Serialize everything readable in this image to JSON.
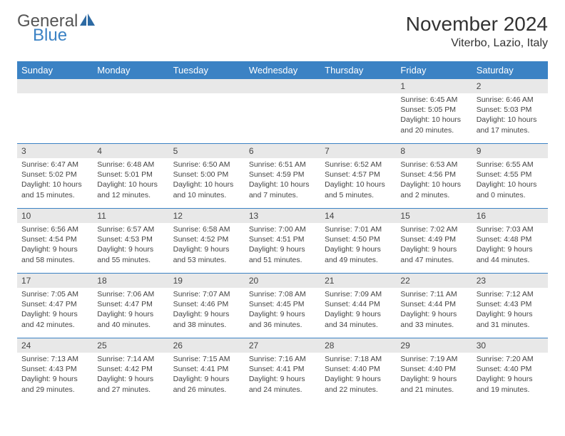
{
  "brand": {
    "text1": "General",
    "text2": "Blue",
    "text_color1": "#555555",
    "text_color2": "#3b82c4",
    "icon_color": "#2d6aa3"
  },
  "header": {
    "month_title": "November 2024",
    "location": "Viterbo, Lazio, Italy"
  },
  "colors": {
    "header_bg": "#3b82c4",
    "header_fg": "#ffffff",
    "daynum_bg": "#e8e8e8",
    "divider": "#3b82c4",
    "text": "#444444"
  },
  "day_names": [
    "Sunday",
    "Monday",
    "Tuesday",
    "Wednesday",
    "Thursday",
    "Friday",
    "Saturday"
  ],
  "weeks": [
    {
      "nums": [
        "",
        "",
        "",
        "",
        "",
        "1",
        "2"
      ],
      "cells": [
        null,
        null,
        null,
        null,
        null,
        {
          "sunrise": "Sunrise: 6:45 AM",
          "sunset": "Sunset: 5:05 PM",
          "day1": "Daylight: 10 hours",
          "day2": "and 20 minutes."
        },
        {
          "sunrise": "Sunrise: 6:46 AM",
          "sunset": "Sunset: 5:03 PM",
          "day1": "Daylight: 10 hours",
          "day2": "and 17 minutes."
        }
      ]
    },
    {
      "nums": [
        "3",
        "4",
        "5",
        "6",
        "7",
        "8",
        "9"
      ],
      "cells": [
        {
          "sunrise": "Sunrise: 6:47 AM",
          "sunset": "Sunset: 5:02 PM",
          "day1": "Daylight: 10 hours",
          "day2": "and 15 minutes."
        },
        {
          "sunrise": "Sunrise: 6:48 AM",
          "sunset": "Sunset: 5:01 PM",
          "day1": "Daylight: 10 hours",
          "day2": "and 12 minutes."
        },
        {
          "sunrise": "Sunrise: 6:50 AM",
          "sunset": "Sunset: 5:00 PM",
          "day1": "Daylight: 10 hours",
          "day2": "and 10 minutes."
        },
        {
          "sunrise": "Sunrise: 6:51 AM",
          "sunset": "Sunset: 4:59 PM",
          "day1": "Daylight: 10 hours",
          "day2": "and 7 minutes."
        },
        {
          "sunrise": "Sunrise: 6:52 AM",
          "sunset": "Sunset: 4:57 PM",
          "day1": "Daylight: 10 hours",
          "day2": "and 5 minutes."
        },
        {
          "sunrise": "Sunrise: 6:53 AM",
          "sunset": "Sunset: 4:56 PM",
          "day1": "Daylight: 10 hours",
          "day2": "and 2 minutes."
        },
        {
          "sunrise": "Sunrise: 6:55 AM",
          "sunset": "Sunset: 4:55 PM",
          "day1": "Daylight: 10 hours",
          "day2": "and 0 minutes."
        }
      ]
    },
    {
      "nums": [
        "10",
        "11",
        "12",
        "13",
        "14",
        "15",
        "16"
      ],
      "cells": [
        {
          "sunrise": "Sunrise: 6:56 AM",
          "sunset": "Sunset: 4:54 PM",
          "day1": "Daylight: 9 hours",
          "day2": "and 58 minutes."
        },
        {
          "sunrise": "Sunrise: 6:57 AM",
          "sunset": "Sunset: 4:53 PM",
          "day1": "Daylight: 9 hours",
          "day2": "and 55 minutes."
        },
        {
          "sunrise": "Sunrise: 6:58 AM",
          "sunset": "Sunset: 4:52 PM",
          "day1": "Daylight: 9 hours",
          "day2": "and 53 minutes."
        },
        {
          "sunrise": "Sunrise: 7:00 AM",
          "sunset": "Sunset: 4:51 PM",
          "day1": "Daylight: 9 hours",
          "day2": "and 51 minutes."
        },
        {
          "sunrise": "Sunrise: 7:01 AM",
          "sunset": "Sunset: 4:50 PM",
          "day1": "Daylight: 9 hours",
          "day2": "and 49 minutes."
        },
        {
          "sunrise": "Sunrise: 7:02 AM",
          "sunset": "Sunset: 4:49 PM",
          "day1": "Daylight: 9 hours",
          "day2": "and 47 minutes."
        },
        {
          "sunrise": "Sunrise: 7:03 AM",
          "sunset": "Sunset: 4:48 PM",
          "day1": "Daylight: 9 hours",
          "day2": "and 44 minutes."
        }
      ]
    },
    {
      "nums": [
        "17",
        "18",
        "19",
        "20",
        "21",
        "22",
        "23"
      ],
      "cells": [
        {
          "sunrise": "Sunrise: 7:05 AM",
          "sunset": "Sunset: 4:47 PM",
          "day1": "Daylight: 9 hours",
          "day2": "and 42 minutes."
        },
        {
          "sunrise": "Sunrise: 7:06 AM",
          "sunset": "Sunset: 4:47 PM",
          "day1": "Daylight: 9 hours",
          "day2": "and 40 minutes."
        },
        {
          "sunrise": "Sunrise: 7:07 AM",
          "sunset": "Sunset: 4:46 PM",
          "day1": "Daylight: 9 hours",
          "day2": "and 38 minutes."
        },
        {
          "sunrise": "Sunrise: 7:08 AM",
          "sunset": "Sunset: 4:45 PM",
          "day1": "Daylight: 9 hours",
          "day2": "and 36 minutes."
        },
        {
          "sunrise": "Sunrise: 7:09 AM",
          "sunset": "Sunset: 4:44 PM",
          "day1": "Daylight: 9 hours",
          "day2": "and 34 minutes."
        },
        {
          "sunrise": "Sunrise: 7:11 AM",
          "sunset": "Sunset: 4:44 PM",
          "day1": "Daylight: 9 hours",
          "day2": "and 33 minutes."
        },
        {
          "sunrise": "Sunrise: 7:12 AM",
          "sunset": "Sunset: 4:43 PM",
          "day1": "Daylight: 9 hours",
          "day2": "and 31 minutes."
        }
      ]
    },
    {
      "nums": [
        "24",
        "25",
        "26",
        "27",
        "28",
        "29",
        "30"
      ],
      "cells": [
        {
          "sunrise": "Sunrise: 7:13 AM",
          "sunset": "Sunset: 4:43 PM",
          "day1": "Daylight: 9 hours",
          "day2": "and 29 minutes."
        },
        {
          "sunrise": "Sunrise: 7:14 AM",
          "sunset": "Sunset: 4:42 PM",
          "day1": "Daylight: 9 hours",
          "day2": "and 27 minutes."
        },
        {
          "sunrise": "Sunrise: 7:15 AM",
          "sunset": "Sunset: 4:41 PM",
          "day1": "Daylight: 9 hours",
          "day2": "and 26 minutes."
        },
        {
          "sunrise": "Sunrise: 7:16 AM",
          "sunset": "Sunset: 4:41 PM",
          "day1": "Daylight: 9 hours",
          "day2": "and 24 minutes."
        },
        {
          "sunrise": "Sunrise: 7:18 AM",
          "sunset": "Sunset: 4:40 PM",
          "day1": "Daylight: 9 hours",
          "day2": "and 22 minutes."
        },
        {
          "sunrise": "Sunrise: 7:19 AM",
          "sunset": "Sunset: 4:40 PM",
          "day1": "Daylight: 9 hours",
          "day2": "and 21 minutes."
        },
        {
          "sunrise": "Sunrise: 7:20 AM",
          "sunset": "Sunset: 4:40 PM",
          "day1": "Daylight: 9 hours",
          "day2": "and 19 minutes."
        }
      ]
    }
  ]
}
